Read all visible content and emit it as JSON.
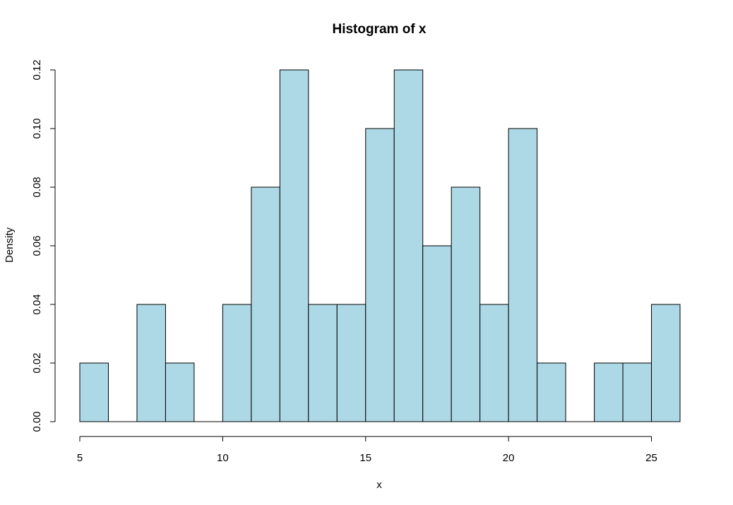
{
  "chart_data": {
    "type": "bar",
    "title": "Histogram of x",
    "xlabel": "x",
    "ylabel": "Density",
    "bin_width": 1,
    "bins": [
      {
        "start": 5,
        "end": 6,
        "density": 0.02
      },
      {
        "start": 6,
        "end": 7,
        "density": 0.0
      },
      {
        "start": 7,
        "end": 8,
        "density": 0.04
      },
      {
        "start": 8,
        "end": 9,
        "density": 0.02
      },
      {
        "start": 9,
        "end": 10,
        "density": 0.0
      },
      {
        "start": 10,
        "end": 11,
        "density": 0.04
      },
      {
        "start": 11,
        "end": 12,
        "density": 0.08
      },
      {
        "start": 12,
        "end": 13,
        "density": 0.12
      },
      {
        "start": 13,
        "end": 14,
        "density": 0.04
      },
      {
        "start": 14,
        "end": 15,
        "density": 0.04
      },
      {
        "start": 15,
        "end": 16,
        "density": 0.1
      },
      {
        "start": 16,
        "end": 17,
        "density": 0.12
      },
      {
        "start": 17,
        "end": 18,
        "density": 0.06
      },
      {
        "start": 18,
        "end": 19,
        "density": 0.08
      },
      {
        "start": 19,
        "end": 20,
        "density": 0.04
      },
      {
        "start": 20,
        "end": 21,
        "density": 0.1
      },
      {
        "start": 21,
        "end": 22,
        "density": 0.02
      },
      {
        "start": 22,
        "end": 23,
        "density": 0.0
      },
      {
        "start": 23,
        "end": 24,
        "density": 0.02
      },
      {
        "start": 24,
        "end": 25,
        "density": 0.02
      },
      {
        "start": 25,
        "end": 26,
        "density": 0.04
      }
    ],
    "xlim": [
      5,
      26
    ],
    "ylim": [
      0,
      0.12
    ],
    "x_ticks": [
      "5",
      "10",
      "15",
      "20",
      "25"
    ],
    "y_ticks": [
      "0.00",
      "0.02",
      "0.04",
      "0.06",
      "0.08",
      "0.10",
      "0.12"
    ],
    "bar_color": "#add8e6",
    "edge_color": "#000000",
    "grid": false,
    "legend": "none"
  }
}
